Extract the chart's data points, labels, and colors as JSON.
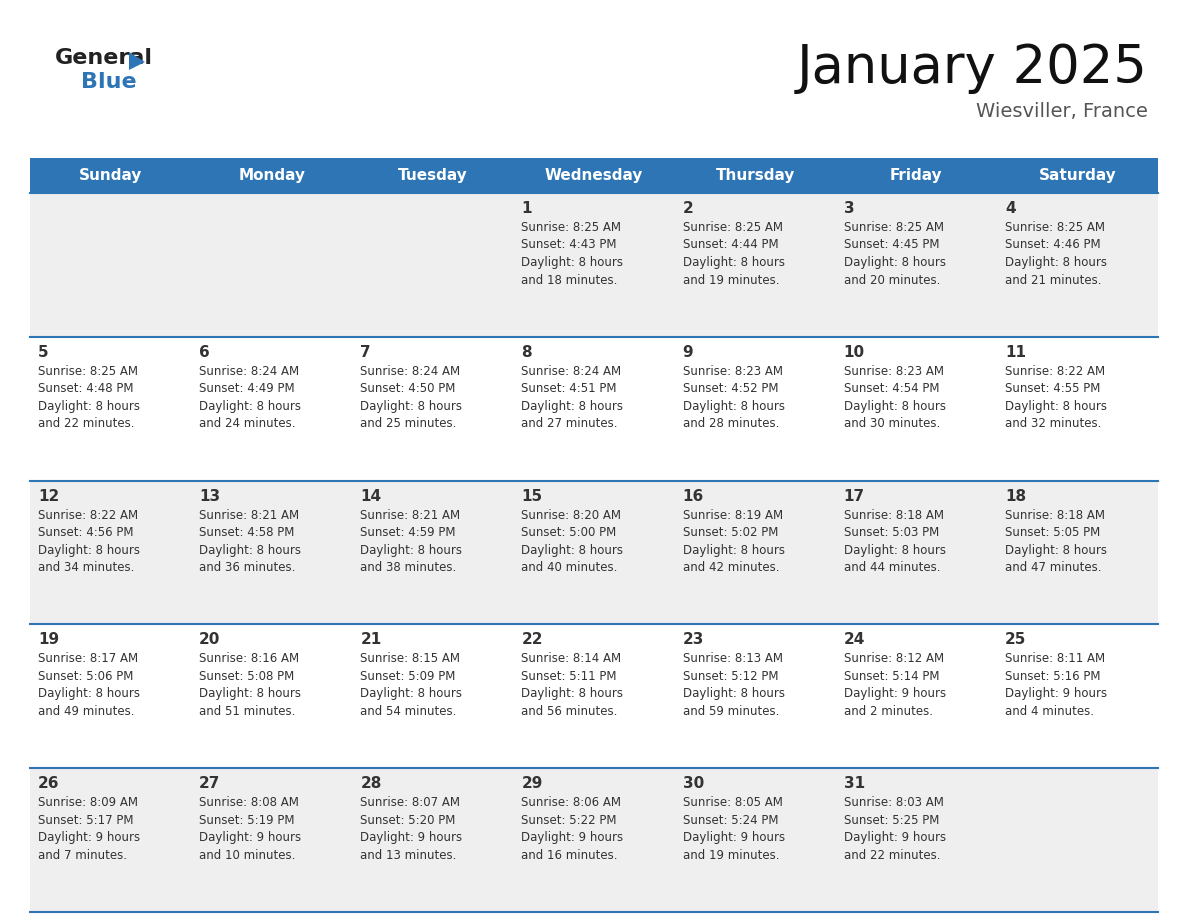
{
  "title": "January 2025",
  "subtitle": "Wiesviller, France",
  "header_bg": "#2E75B6",
  "header_text_color": "#FFFFFF",
  "cell_bg_odd": "#EFEFEF",
  "cell_bg_even": "#FFFFFF",
  "row_line_color": "#2E75B6",
  "text_color": "#333333",
  "days_of_week": [
    "Sunday",
    "Monday",
    "Tuesday",
    "Wednesday",
    "Thursday",
    "Friday",
    "Saturday"
  ],
  "weeks": [
    [
      {
        "day": null,
        "info": null
      },
      {
        "day": null,
        "info": null
      },
      {
        "day": null,
        "info": null
      },
      {
        "day": 1,
        "info": "Sunrise: 8:25 AM\nSunset: 4:43 PM\nDaylight: 8 hours\nand 18 minutes."
      },
      {
        "day": 2,
        "info": "Sunrise: 8:25 AM\nSunset: 4:44 PM\nDaylight: 8 hours\nand 19 minutes."
      },
      {
        "day": 3,
        "info": "Sunrise: 8:25 AM\nSunset: 4:45 PM\nDaylight: 8 hours\nand 20 minutes."
      },
      {
        "day": 4,
        "info": "Sunrise: 8:25 AM\nSunset: 4:46 PM\nDaylight: 8 hours\nand 21 minutes."
      }
    ],
    [
      {
        "day": 5,
        "info": "Sunrise: 8:25 AM\nSunset: 4:48 PM\nDaylight: 8 hours\nand 22 minutes."
      },
      {
        "day": 6,
        "info": "Sunrise: 8:24 AM\nSunset: 4:49 PM\nDaylight: 8 hours\nand 24 minutes."
      },
      {
        "day": 7,
        "info": "Sunrise: 8:24 AM\nSunset: 4:50 PM\nDaylight: 8 hours\nand 25 minutes."
      },
      {
        "day": 8,
        "info": "Sunrise: 8:24 AM\nSunset: 4:51 PM\nDaylight: 8 hours\nand 27 minutes."
      },
      {
        "day": 9,
        "info": "Sunrise: 8:23 AM\nSunset: 4:52 PM\nDaylight: 8 hours\nand 28 minutes."
      },
      {
        "day": 10,
        "info": "Sunrise: 8:23 AM\nSunset: 4:54 PM\nDaylight: 8 hours\nand 30 minutes."
      },
      {
        "day": 11,
        "info": "Sunrise: 8:22 AM\nSunset: 4:55 PM\nDaylight: 8 hours\nand 32 minutes."
      }
    ],
    [
      {
        "day": 12,
        "info": "Sunrise: 8:22 AM\nSunset: 4:56 PM\nDaylight: 8 hours\nand 34 minutes."
      },
      {
        "day": 13,
        "info": "Sunrise: 8:21 AM\nSunset: 4:58 PM\nDaylight: 8 hours\nand 36 minutes."
      },
      {
        "day": 14,
        "info": "Sunrise: 8:21 AM\nSunset: 4:59 PM\nDaylight: 8 hours\nand 38 minutes."
      },
      {
        "day": 15,
        "info": "Sunrise: 8:20 AM\nSunset: 5:00 PM\nDaylight: 8 hours\nand 40 minutes."
      },
      {
        "day": 16,
        "info": "Sunrise: 8:19 AM\nSunset: 5:02 PM\nDaylight: 8 hours\nand 42 minutes."
      },
      {
        "day": 17,
        "info": "Sunrise: 8:18 AM\nSunset: 5:03 PM\nDaylight: 8 hours\nand 44 minutes."
      },
      {
        "day": 18,
        "info": "Sunrise: 8:18 AM\nSunset: 5:05 PM\nDaylight: 8 hours\nand 47 minutes."
      }
    ],
    [
      {
        "day": 19,
        "info": "Sunrise: 8:17 AM\nSunset: 5:06 PM\nDaylight: 8 hours\nand 49 minutes."
      },
      {
        "day": 20,
        "info": "Sunrise: 8:16 AM\nSunset: 5:08 PM\nDaylight: 8 hours\nand 51 minutes."
      },
      {
        "day": 21,
        "info": "Sunrise: 8:15 AM\nSunset: 5:09 PM\nDaylight: 8 hours\nand 54 minutes."
      },
      {
        "day": 22,
        "info": "Sunrise: 8:14 AM\nSunset: 5:11 PM\nDaylight: 8 hours\nand 56 minutes."
      },
      {
        "day": 23,
        "info": "Sunrise: 8:13 AM\nSunset: 5:12 PM\nDaylight: 8 hours\nand 59 minutes."
      },
      {
        "day": 24,
        "info": "Sunrise: 8:12 AM\nSunset: 5:14 PM\nDaylight: 9 hours\nand 2 minutes."
      },
      {
        "day": 25,
        "info": "Sunrise: 8:11 AM\nSunset: 5:16 PM\nDaylight: 9 hours\nand 4 minutes."
      }
    ],
    [
      {
        "day": 26,
        "info": "Sunrise: 8:09 AM\nSunset: 5:17 PM\nDaylight: 9 hours\nand 7 minutes."
      },
      {
        "day": 27,
        "info": "Sunrise: 8:08 AM\nSunset: 5:19 PM\nDaylight: 9 hours\nand 10 minutes."
      },
      {
        "day": 28,
        "info": "Sunrise: 8:07 AM\nSunset: 5:20 PM\nDaylight: 9 hours\nand 13 minutes."
      },
      {
        "day": 29,
        "info": "Sunrise: 8:06 AM\nSunset: 5:22 PM\nDaylight: 9 hours\nand 16 minutes."
      },
      {
        "day": 30,
        "info": "Sunrise: 8:05 AM\nSunset: 5:24 PM\nDaylight: 9 hours\nand 19 minutes."
      },
      {
        "day": 31,
        "info": "Sunrise: 8:03 AM\nSunset: 5:25 PM\nDaylight: 9 hours\nand 22 minutes."
      },
      {
        "day": null,
        "info": null
      }
    ]
  ],
  "logo_general_color": "#222222",
  "logo_blue_color": "#2E75B6",
  "logo_triangle_color": "#2E75B6",
  "title_color": "#111111",
  "subtitle_color": "#555555"
}
